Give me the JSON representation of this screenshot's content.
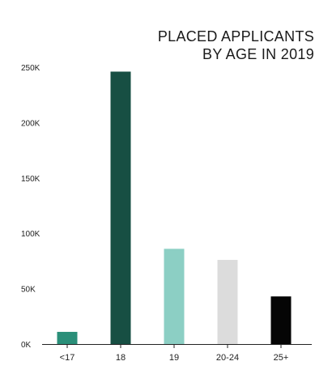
{
  "colors": {
    "background": "#ffffff",
    "axis": "#222222",
    "text": "#222222"
  },
  "chart_data": {
    "type": "bar",
    "title_line1": "PLACED APPLICANTS",
    "title_line2": "BY AGE IN 2019",
    "xlabel": "",
    "ylabel": "",
    "categories": [
      "<17",
      "18",
      "19",
      "20-24",
      "25+"
    ],
    "values": [
      11000,
      246000,
      86000,
      76000,
      43000
    ],
    "bar_colors": [
      "#2a8f79",
      "#174f43",
      "#8ccfc4",
      "#dcdcdc",
      "#050505"
    ],
    "ylim": [
      0,
      250000
    ],
    "yticks": [
      0,
      50000,
      100000,
      150000,
      200000,
      250000
    ],
    "ytick_labels": [
      "0K",
      "50K",
      "100K",
      "150K",
      "200K",
      "250K"
    ],
    "grid": false,
    "legend": "none"
  }
}
